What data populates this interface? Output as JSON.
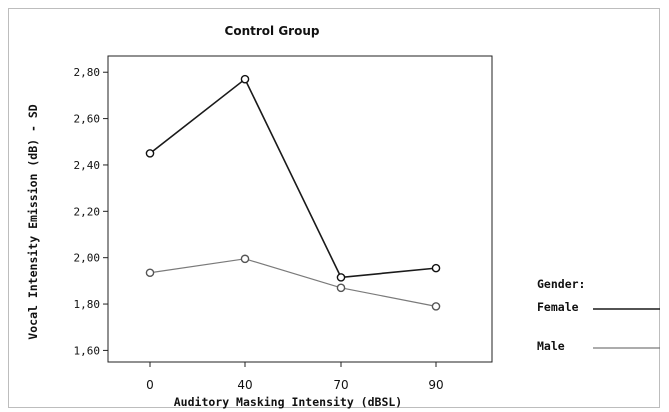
{
  "chart_data": {
    "type": "line",
    "title": "Control Group",
    "xlabel": "Auditory Masking Intensity (dBSL)",
    "ylabel": "Vocal Intensity Emission (dB) - SD",
    "categories": [
      "0",
      "40",
      "70",
      "90"
    ],
    "ylim": [
      1.55,
      2.87
    ],
    "yticks": [
      1.6,
      1.8,
      2.0,
      2.2,
      2.4,
      2.6,
      2.8
    ],
    "ytick_labels": [
      "1,60",
      "1,80",
      "2,00",
      "2,20",
      "2,40",
      "2,60",
      "2,80"
    ],
    "grid": false,
    "legend": {
      "title": "Gender:",
      "placement": "right"
    },
    "series": [
      {
        "name": "Female",
        "values": [
          2.45,
          2.77,
          1.915,
          1.955
        ],
        "color": "#1a1a1a"
      },
      {
        "name": "Male",
        "values": [
          1.935,
          1.995,
          1.87,
          1.79
        ],
        "color": "#7a7a7a"
      }
    ]
  }
}
